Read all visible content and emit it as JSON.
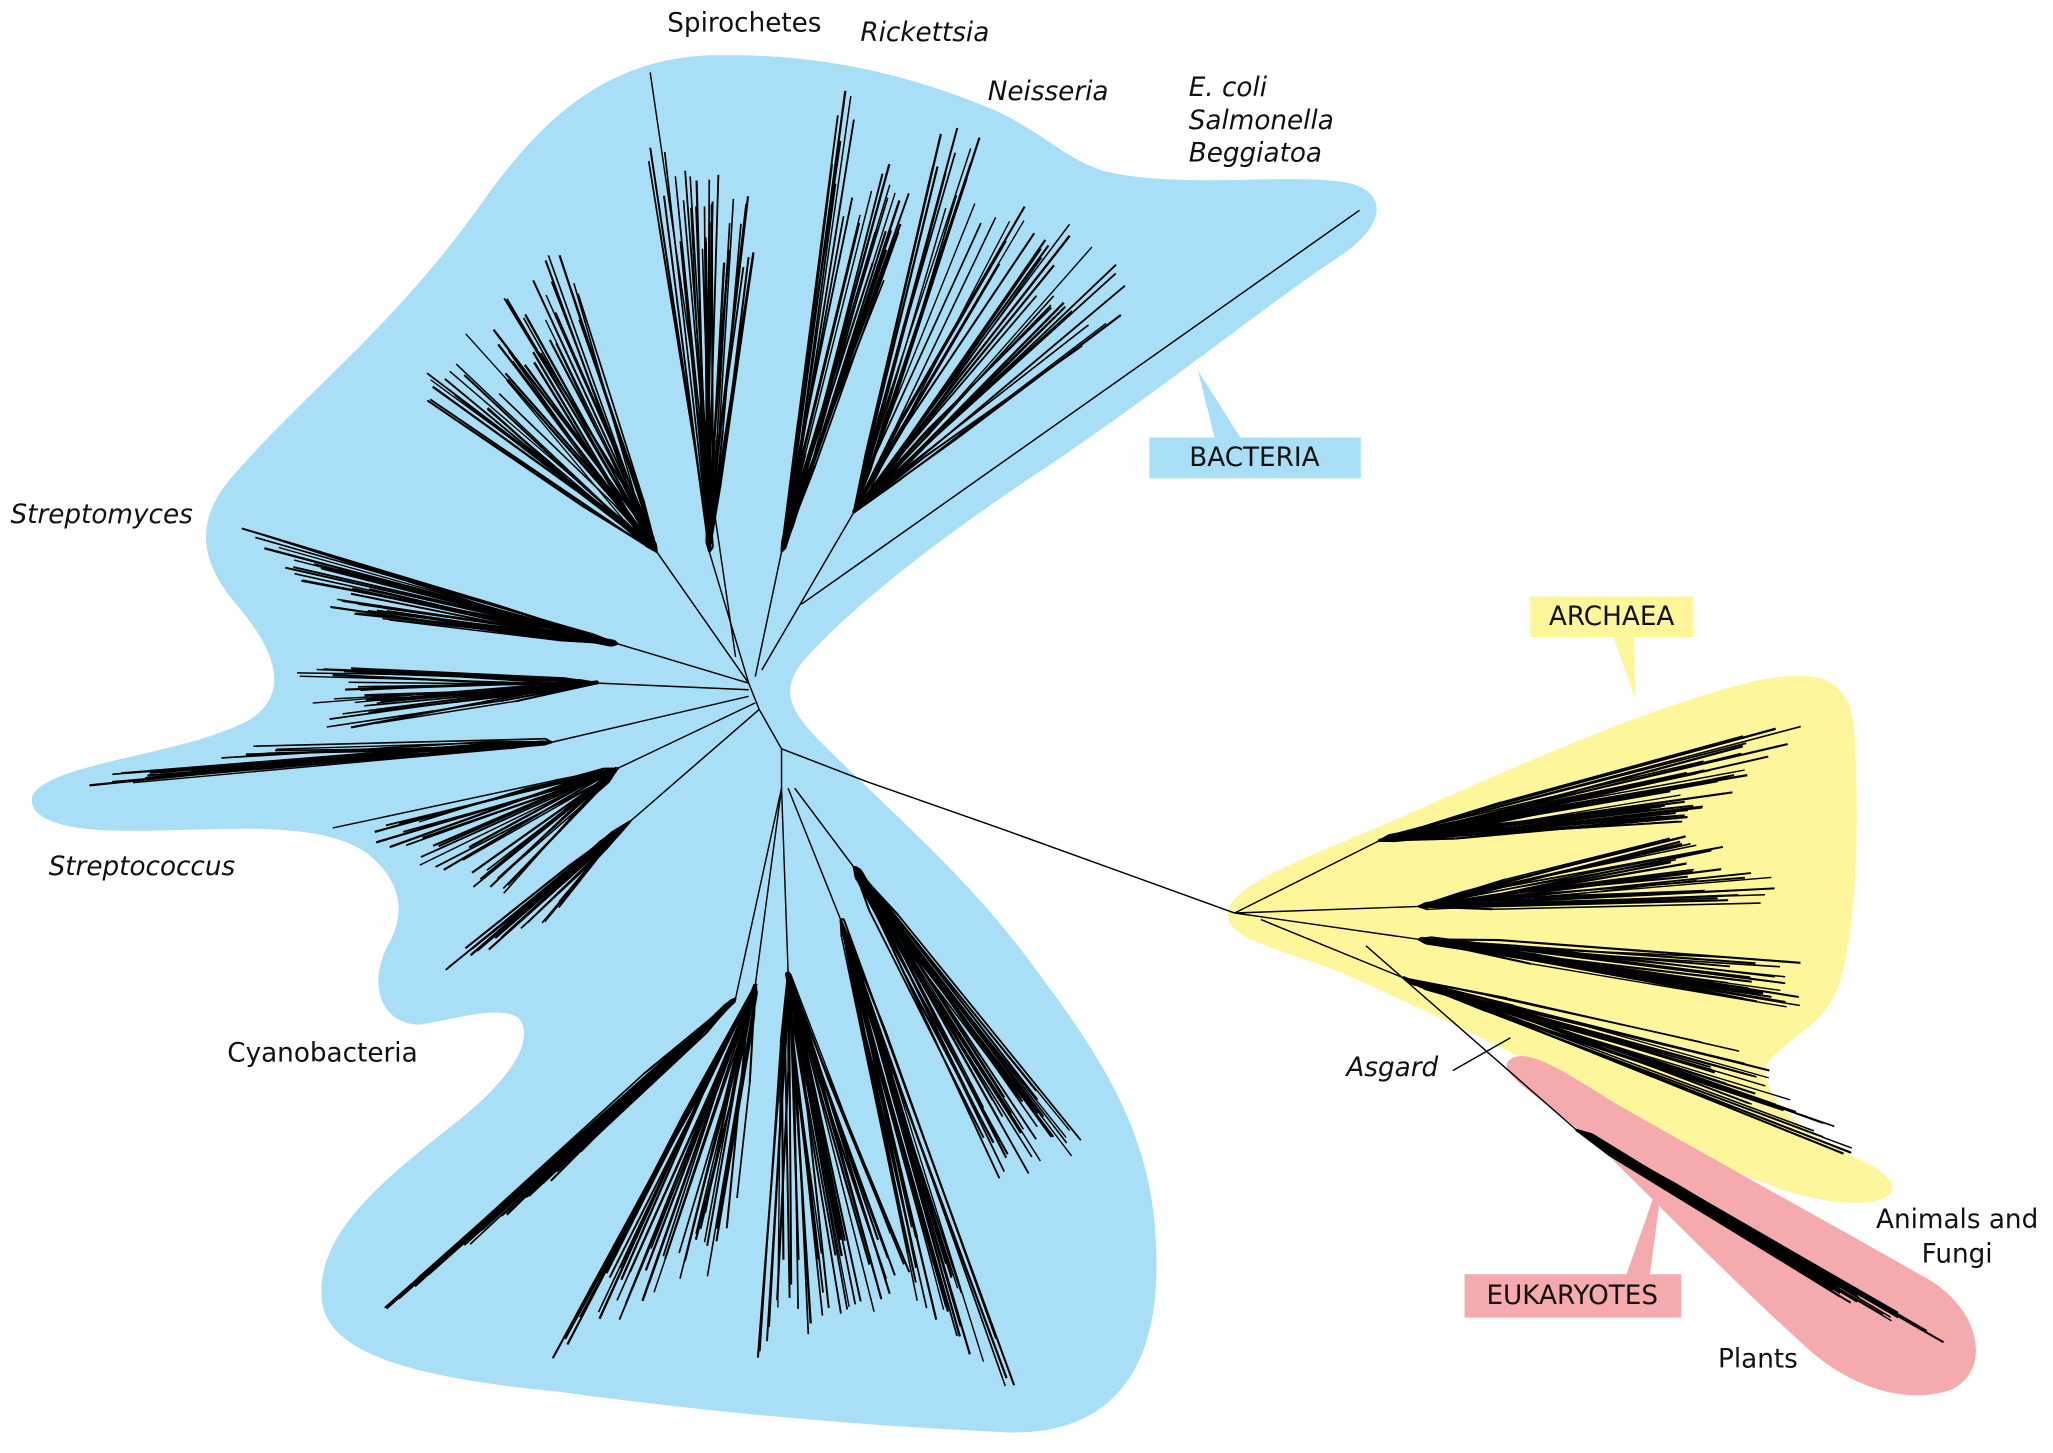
{
  "domains": {
    "bacteria": "BACTERIA",
    "archaea": "ARCHAEA",
    "eukaryotes": "EUKARYOTES"
  },
  "taxa": {
    "spirochetes": "Spirochetes",
    "rickettsia": "Rickettsia",
    "neisseria": "Neisseria",
    "ecoli": "E. coli",
    "salmonella": "Salmonella",
    "beggiatoa": "Beggiatoa",
    "streptomyces": "Streptomyces",
    "streptococcus": "Streptococcus",
    "cyanobacteria": "Cyanobacteria",
    "asgard": "Asgard",
    "animals_and_fungi": [
      "Animals and",
      "Fungi"
    ],
    "plants": "Plants"
  }
}
